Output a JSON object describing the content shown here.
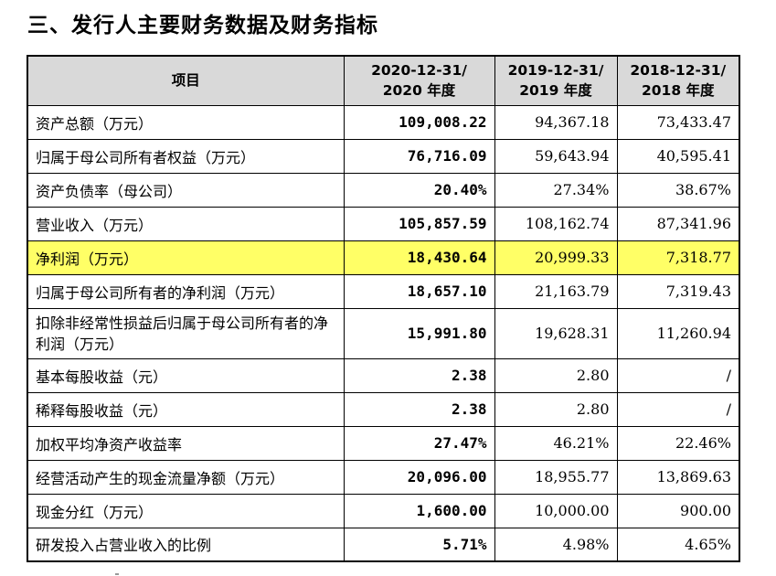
{
  "heading": "三、发行人主要财务数据及财务指标",
  "table": {
    "headers": [
      "项目",
      "2020-12-31/\n2020 年度",
      "2019-12-31/\n2019 年度",
      "2018-12-31/\n2018 年度"
    ],
    "header_lines": [
      {
        "a": "2020-12-31/",
        "b": "2020 年度"
      },
      {
        "a": "2019-12-31/",
        "b": "2019 年度"
      },
      {
        "a": "2018-12-31/",
        "b": "2018 年度"
      }
    ],
    "highlight_color": "#ffff66",
    "rows": [
      {
        "label": "资产总额（万元）",
        "v2020": "109,008.22",
        "v2019": "94,367.18",
        "v2018": "73,433.47"
      },
      {
        "label": "归属于母公司所有者权益（万元）",
        "v2020": "76,716.09",
        "v2019": "59,643.94",
        "v2018": "40,595.41"
      },
      {
        "label": "资产负债率（母公司）",
        "v2020": "20.40%",
        "v2019": "27.34%",
        "v2018": "38.67%"
      },
      {
        "label": "营业收入（万元）",
        "v2020": "105,857.59",
        "v2019": "108,162.74",
        "v2018": "87,341.96"
      },
      {
        "label": "净利润（万元）",
        "v2020": "18,430.64",
        "v2019": "20,999.33",
        "v2018": "7,318.77",
        "highlighted": true
      },
      {
        "label": "归属于母公司所有者的净利润（万元）",
        "v2020": "18,657.10",
        "v2019": "21,163.79",
        "v2018": "7,319.43"
      },
      {
        "label": "扣除非经常性损益后归属于母公司所有者的净利润（万元）",
        "v2020": "15,991.80",
        "v2019": "19,628.31",
        "v2018": "11,260.94"
      },
      {
        "label": "基本每股收益（元）",
        "v2020": "2.38",
        "v2019": "2.80",
        "v2018": "/"
      },
      {
        "label": "稀释每股收益（元）",
        "v2020": "2.38",
        "v2019": "2.80",
        "v2018": "/"
      },
      {
        "label": "加权平均净资产收益率",
        "v2020": "27.47%",
        "v2019": "46.21%",
        "v2018": "22.46%"
      },
      {
        "label": "经营活动产生的现金流量净额（万元）",
        "v2020": "20,096.00",
        "v2019": "18,955.77",
        "v2018": "13,869.63"
      },
      {
        "label": "现金分红（万元）",
        "v2020": "1,600.00",
        "v2019": "10,000.00",
        "v2018": "900.00"
      },
      {
        "label": "研发投入占营业收入的比例",
        "v2020": "5.71%",
        "v2019": "4.98%",
        "v2018": "4.65%"
      }
    ]
  }
}
